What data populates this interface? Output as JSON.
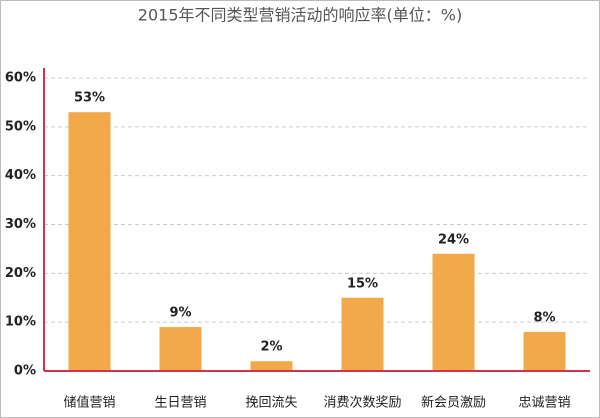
{
  "chart_data": {
    "type": "bar",
    "title": "2015年不同类型营销活动的响应率(单位：%)",
    "categories": [
      "储值营销",
      "生日营销",
      "挽回流失",
      "消费次数奖励",
      "新会员激励",
      "忠诚营销"
    ],
    "values": [
      53,
      9,
      2,
      15,
      24,
      8
    ],
    "value_labels": [
      "53%",
      "9%",
      "2%",
      "15%",
      "24%",
      "8%"
    ],
    "color": "#f2a94a",
    "ylim": [
      0,
      60
    ],
    "yticks": [
      {
        "value": 0,
        "label": "0%"
      },
      {
        "value": 10,
        "label": "10%"
      },
      {
        "value": 20,
        "label": "20%"
      },
      {
        "value": 30,
        "label": "30%"
      },
      {
        "value": 40,
        "label": "40%"
      },
      {
        "value": 50,
        "label": "50%"
      },
      {
        "value": 60,
        "label": "60%"
      }
    ],
    "grid": true
  }
}
